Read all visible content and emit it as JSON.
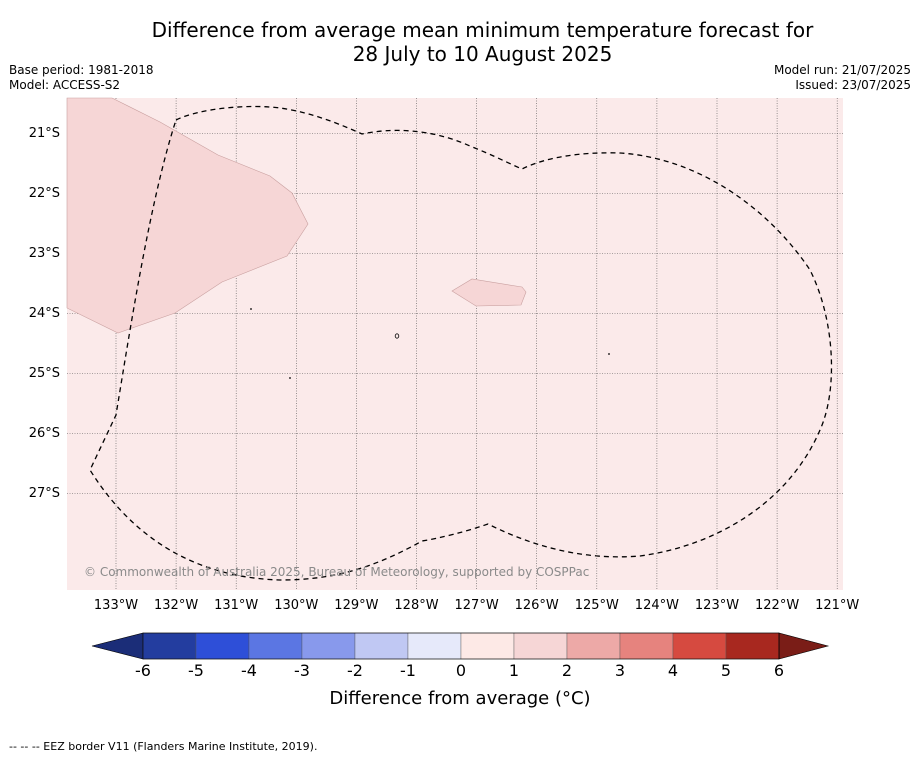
{
  "title": {
    "line1": "Difference from average mean minimum temperature forecast for",
    "line2": "28 July to 10 August 2025"
  },
  "meta": {
    "base_period": "Base period: 1981-2018",
    "model": "Model: ACCESS-S2",
    "model_run": "Model run: 21/07/2025",
    "issued": "Issued: 23/07/2025"
  },
  "map": {
    "lat_labels": [
      "21°S",
      "22°S",
      "23°S",
      "24°S",
      "25°S",
      "26°S",
      "27°S"
    ],
    "lon_labels": [
      "133°W",
      "132°W",
      "131°W",
      "130°W",
      "129°W",
      "128°W",
      "127°W",
      "126°W",
      "125°W",
      "124°W",
      "123°W",
      "122°W",
      "121°W"
    ],
    "background_colour": "#fbeaea",
    "anomaly_patch_colour": "#f6d6d6",
    "eez_border_style": "dashed black",
    "copyright": "© Commonwealth of Australia 2025, Bureau of Meteorology, supported by COSPPac"
  },
  "colorbar": {
    "title": "Difference from average (°C)",
    "ticks": [
      "-6",
      "-5",
      "-4",
      "-3",
      "-2",
      "-1",
      "0",
      "1",
      "2",
      "3",
      "4",
      "5",
      "6"
    ],
    "colours": [
      "#233d9f",
      "#2e4fd8",
      "#5b76e3",
      "#8899ec",
      "#c0c8f3",
      "#e6e9fa",
      "#fde9e6",
      "#f6d6d6",
      "#eda9a7",
      "#e6837e",
      "#d64a40",
      "#a8281f"
    ],
    "under_colour": "#1b2d78",
    "over_colour": "#7a1d17"
  },
  "footer": "-- -- -- EEZ border V11 (Flanders Marine Institute, 2019)."
}
